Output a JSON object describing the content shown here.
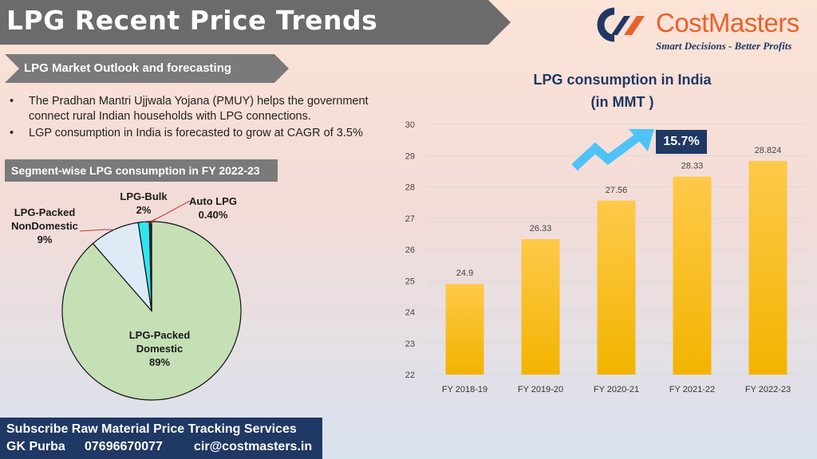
{
  "header": {
    "title": "LPG Recent Price Trends",
    "logo_name": "CostMasters",
    "logo_tagline": "Smart Decisions - Better Profits"
  },
  "outlook": {
    "heading": "LPG Market Outlook and forecasting",
    "bullets": [
      "The Pradhan Mantri Ujjwala Yojana (PMUY) helps the government connect rural Indian households with LPG connections.",
      "LGP consumption in India is forecasted to grow at CAGR of 3.5%"
    ]
  },
  "segment": {
    "heading": "Segment-wise LPG consumption in FY 2022-23"
  },
  "footer": {
    "line1": "Subscribe Raw Material Price Tracking Services",
    "name": "GK Purba",
    "phone": "07696670077",
    "email": "cir@costmasters.in"
  },
  "chart_data": [
    {
      "type": "bar",
      "title": "LPG consumption in India",
      "subtitle": "(in MMT )",
      "categories": [
        "FY  2018-19",
        "FY  2019-20",
        "FY  2020-21",
        "FY  2021-22",
        "FY  2022-23"
      ],
      "values": [
        24.9,
        26.33,
        27.56,
        28.33,
        28.824
      ],
      "data_labels": [
        "24.9",
        "26.33",
        "27.56",
        "28.33",
        "28.824"
      ],
      "ylim": [
        22,
        30
      ],
      "yticks": [
        "22",
        "23",
        "24",
        "25",
        "26",
        "27",
        "28",
        "29",
        "30"
      ],
      "grid": true,
      "annotation": "15.7%",
      "colors": {
        "bar_top": "#ffc94a",
        "bar_bottom": "#f2b400",
        "grid": "#d9d9d9",
        "accent": "#1f3864",
        "arrow": "#4fc3f7"
      }
    },
    {
      "type": "pie",
      "slices": [
        {
          "label_lines": [
            "LPG-Packed",
            "Domestic",
            "89%"
          ],
          "value": 88.6,
          "color": "#c5e0b4"
        },
        {
          "label_lines": [
            "LPG-Packed",
            "NonDomestic",
            "9%"
          ],
          "value": 9.0,
          "color": "#deebf7"
        },
        {
          "label_lines": [
            "LPG-Bulk",
            "2%"
          ],
          "value": 2.0,
          "color": "#2ee6f2"
        },
        {
          "label_lines": [
            "Auto LPG",
            "0.40%"
          ],
          "value": 0.4,
          "color": "#0b2f5a"
        }
      ]
    }
  ]
}
